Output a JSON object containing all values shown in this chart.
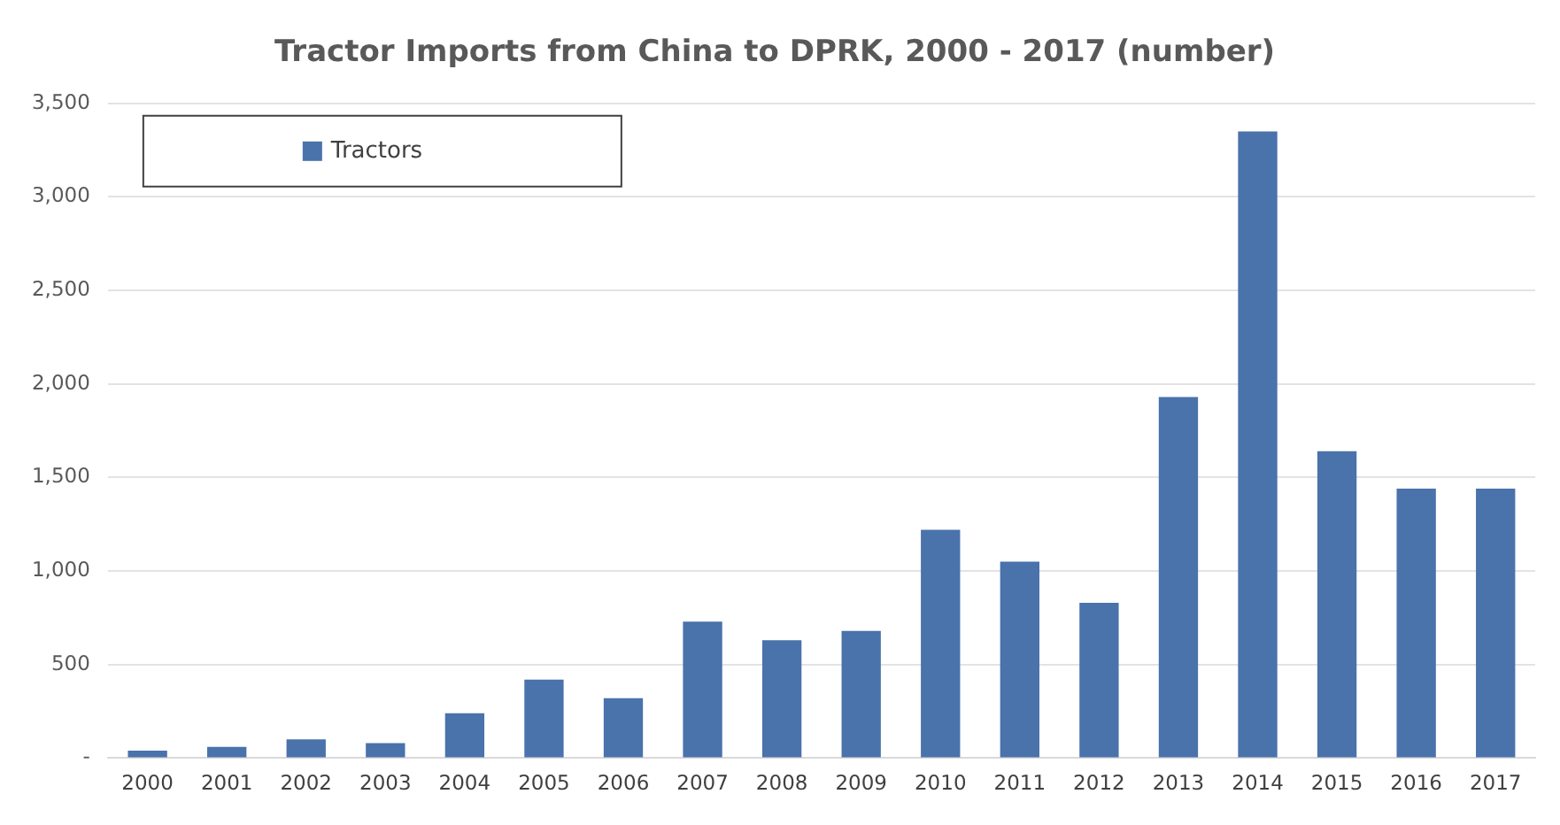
{
  "chart_data": {
    "type": "bar",
    "title": "Tractor Imports from China to DPRK, 2000 - 2017 (number)",
    "categories": [
      "2000",
      "2001",
      "2002",
      "2003",
      "2004",
      "2005",
      "2006",
      "2007",
      "2008",
      "2009",
      "2010",
      "2011",
      "2012",
      "2013",
      "2014",
      "2015",
      "2016",
      "2017"
    ],
    "series": [
      {
        "name": "Tractors",
        "color": "#4a72ab",
        "values": [
          40,
          60,
          100,
          80,
          240,
          420,
          320,
          730,
          630,
          680,
          1220,
          1050,
          830,
          1930,
          3350,
          1640,
          1440,
          1440
        ]
      }
    ],
    "ylim": [
      0,
      3500
    ],
    "yticks": [
      {
        "value": 0,
        "label": "-"
      },
      {
        "value": 500,
        "label": "500"
      },
      {
        "value": 1000,
        "label": "1,000"
      },
      {
        "value": 1500,
        "label": "1,500"
      },
      {
        "value": 2000,
        "label": "2,000"
      },
      {
        "value": 2500,
        "label": "2,500"
      },
      {
        "value": 3000,
        "label": "3,000"
      },
      {
        "value": 3500,
        "label": "3,500"
      }
    ],
    "grid": "y",
    "legend": "top left"
  }
}
